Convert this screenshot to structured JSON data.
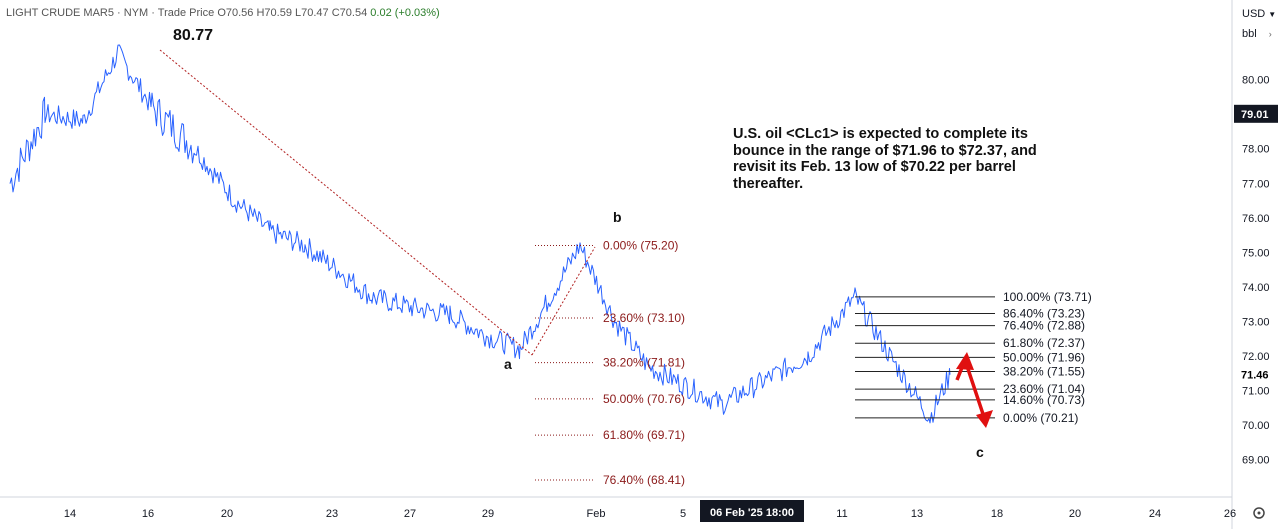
{
  "header": {
    "symbol": "LIGHT CRUDE MAR5",
    "exchange": "NYM",
    "price_type": "Trade Price",
    "open": "O70.56",
    "high": "H70.59",
    "low": "L70.47",
    "close": "C70.54",
    "change": "0.02 (+0.03%)"
  },
  "toolbar": {
    "currency": "USD",
    "unit": "bbl"
  },
  "annotation": "U.S. oil <CLc1> is expected to complete its bounce in the range of $71.96 to $72.37, and revisit its Feb. 13 low of $70.22 per barrel thereafter.",
  "labels": {
    "peak": "80.77",
    "wave_a": "a",
    "wave_b": "b",
    "wave_c": "c"
  },
  "colors": {
    "candles": "#2962ff",
    "fib_left": "#8b1a1a",
    "trend": "#b22222",
    "arrow": "#e01010",
    "current": "#000000"
  },
  "chart_data": {
    "type": "line",
    "title": "",
    "x_ticks": [
      "14",
      "16",
      "20",
      "23",
      "27",
      "29",
      "Feb",
      "5",
      "11",
      "13",
      "18",
      "20",
      "24",
      "26"
    ],
    "crosshair_x_label": "06 Feb '25  18:00",
    "y_ticks": [
      69.0,
      70.0,
      71.0,
      72.0,
      73.0,
      74.0,
      75.0,
      76.0,
      77.0,
      78.0,
      79.0,
      80.0
    ],
    "ylim": [
      68.1,
      82.4
    ],
    "last_price": "71.46",
    "crosshair_price": "79.01",
    "price_path": [
      [
        "Jan 13",
        77.0
      ],
      [
        "Jan 14",
        79.0
      ],
      [
        "Jan 15",
        78.8
      ],
      [
        "Jan 16",
        80.77
      ],
      [
        "Jan 17",
        79.2
      ],
      [
        "Jan 20",
        78.0
      ],
      [
        "Jan 21",
        76.5
      ],
      [
        "Jan 22",
        75.6
      ],
      [
        "Jan 23",
        75.2
      ],
      [
        "Jan 24",
        74.5
      ],
      [
        "Jan 27",
        73.7
      ],
      [
        "Jan 28",
        73.4
      ],
      [
        "Jan 29",
        73.2
      ],
      [
        "Jan 30",
        72.6
      ],
      [
        "Jan 31",
        72.2
      ],
      [
        "Feb 3",
        75.2
      ],
      [
        "Feb 4",
        73.0
      ],
      [
        "Feb 5",
        71.7
      ],
      [
        "Feb 6",
        71.1
      ],
      [
        "Feb 7",
        70.6
      ],
      [
        "Feb 10",
        72.0
      ],
      [
        "Feb 11",
        73.71
      ],
      [
        "Feb 12",
        72.0
      ],
      [
        "Feb 13",
        70.21
      ],
      [
        "Feb 14",
        71.46
      ]
    ],
    "fib_retracement_left": [
      {
        "label": "0.00% (75.20)",
        "price": 75.2
      },
      {
        "label": "23.60% (73.10)",
        "price": 73.1
      },
      {
        "label": "38.20% (71.81)",
        "price": 71.81
      },
      {
        "label": "50.00% (70.76)",
        "price": 70.76
      },
      {
        "label": "61.80% (69.71)",
        "price": 69.71
      },
      {
        "label": "76.40% (68.41)",
        "price": 68.41
      }
    ],
    "fib_retracement_right": [
      {
        "label": "100.00% (73.71)",
        "price": 73.71
      },
      {
        "label": "86.40% (73.23)",
        "price": 73.23
      },
      {
        "label": "76.40% (72.88)",
        "price": 72.88
      },
      {
        "label": "61.80% (72.37)",
        "price": 72.37
      },
      {
        "label": "50.00% (71.96)",
        "price": 71.96
      },
      {
        "label": "38.20% (71.55)",
        "price": 71.55
      },
      {
        "label": "23.60% (71.04)",
        "price": 71.04
      },
      {
        "label": "14.60% (70.73)",
        "price": 70.73
      },
      {
        "label": "0.00% (70.21)",
        "price": 70.21
      }
    ]
  }
}
